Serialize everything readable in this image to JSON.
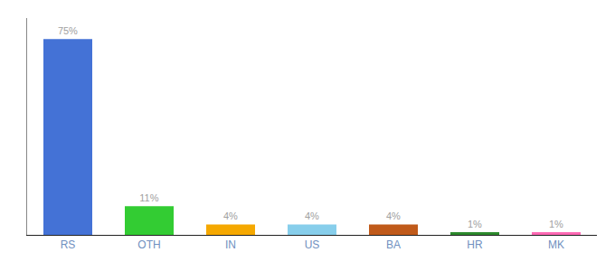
{
  "chart_data": {
    "type": "bar",
    "categories": [
      "RS",
      "OTH",
      "IN",
      "US",
      "BA",
      "HR",
      "MK"
    ],
    "values": [
      75,
      11,
      4,
      4,
      4,
      1,
      1
    ],
    "value_labels": [
      "75%",
      "11%",
      "4%",
      "4%",
      "4%",
      "1%",
      "1%"
    ],
    "colors": [
      "#4472d6",
      "#33cc33",
      "#f5a800",
      "#87ceeb",
      "#c05a1a",
      "#2d8a2d",
      "#ff69b4"
    ],
    "ylim": [
      0,
      83
    ],
    "data_labels": true,
    "tick_labels": "x",
    "grid": false
  }
}
